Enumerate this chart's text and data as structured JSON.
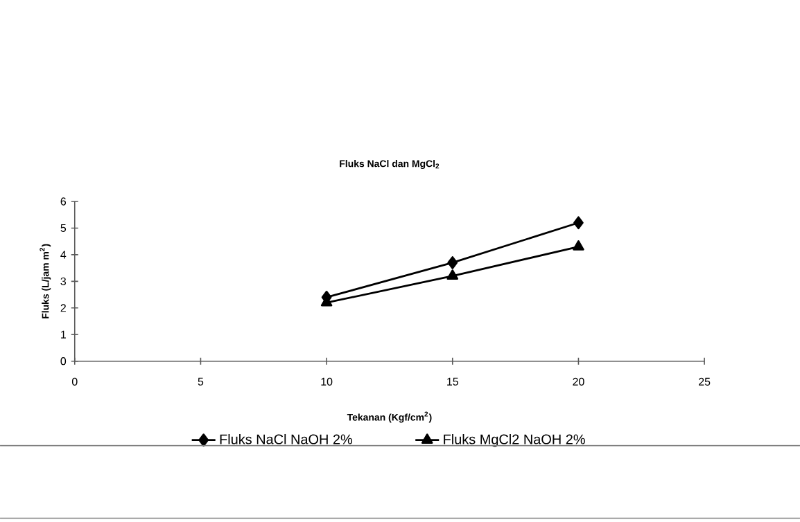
{
  "chart_data": {
    "type": "line",
    "title": "Fluks NaCl dan MgCl$_{2}$",
    "xlabel": "Tekanan (Kgf/cm$^{2}$)",
    "ylabel": "Fluks (L/jam m$^{2}$)",
    "x": [
      10,
      15,
      20
    ],
    "series": [
      {
        "name": "Fluks NaCl NaOH 2%",
        "color": "#000000",
        "marker": "diamond",
        "values": [
          2.4,
          3.7,
          5.2
        ]
      },
      {
        "name": "Fluks MgCl2 NaOH 2%",
        "color": "#000000",
        "marker": "triangle",
        "values": [
          2.2,
          3.2,
          4.3
        ]
      }
    ],
    "xlim": [
      0,
      25
    ],
    "xticks": [
      0,
      5,
      10,
      15,
      20,
      25
    ],
    "ylim": [
      0,
      6
    ],
    "yticks": [
      0,
      1,
      2,
      3,
      4,
      5,
      6
    ],
    "grid": false,
    "legend": "bottom",
    "line_style": "solid"
  }
}
